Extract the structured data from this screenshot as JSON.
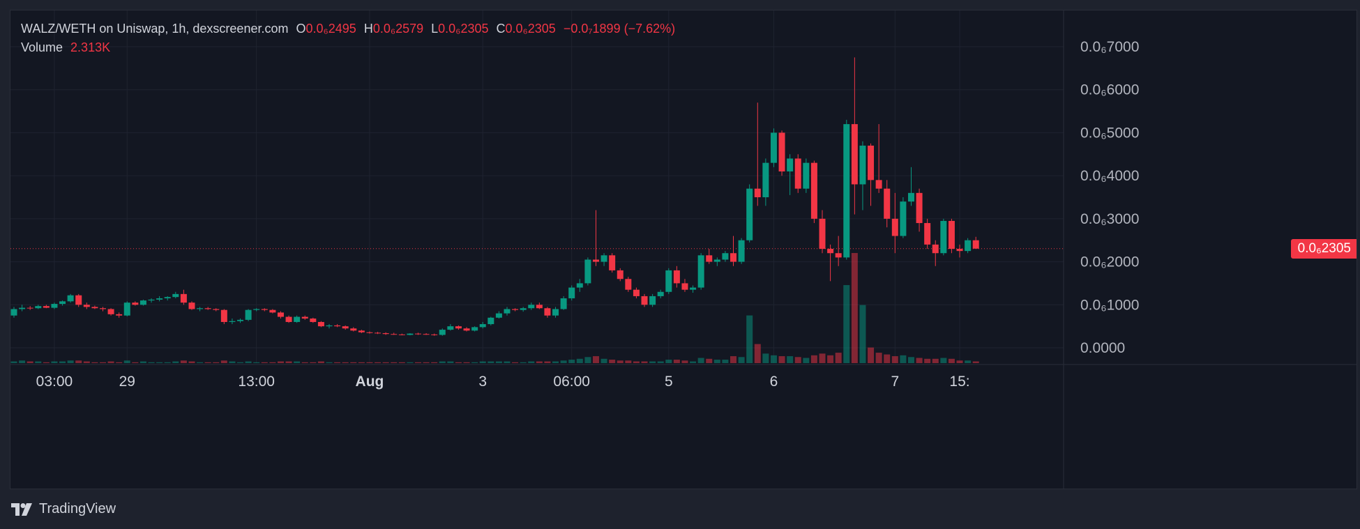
{
  "header": {
    "symbol_line": "WALZ/WETH on Uniswap, 1h, dexscreener.com",
    "o_label": "O",
    "o_value": "0.0₆2495",
    "h_label": "H",
    "h_value": "0.0₆2579",
    "l_label": "L",
    "l_value": "0.0₆2305",
    "c_label": "C",
    "c_value": "0.0₆2305",
    "change": "−0.0₇1899 (−7.62%)",
    "volume_label": "Volume",
    "volume_value": "2.313K"
  },
  "brand": "TradingView",
  "colors": {
    "up": "#089981",
    "down": "#f23645",
    "background": "#131722",
    "grid": "#1f2330",
    "text": "#d1d4dc"
  },
  "chart_data": {
    "type": "candlestick",
    "title": "WALZ/WETH on Uniswap, 1h, dexscreener.com",
    "y_unit": "×1e-7 WETH",
    "ylim": [
      -0.4,
      7.5
    ],
    "y_ticks": [
      0,
      1,
      2,
      3,
      4,
      5,
      6,
      7
    ],
    "y_tick_labels": [
      "0.0000",
      "0.0₆1000",
      "0.0₆2000",
      "0.0₆3000",
      "0.0₆4000",
      "0.0₆5000",
      "0.0₆6000",
      "0.0₆7000"
    ],
    "x_ticks": [
      {
        "index": 5,
        "label": "03:00",
        "bold": false
      },
      {
        "index": 14,
        "label": "29",
        "bold": false
      },
      {
        "index": 30,
        "label": "13:00",
        "bold": false
      },
      {
        "index": 44,
        "label": "Aug",
        "bold": true
      },
      {
        "index": 58,
        "label": "3",
        "bold": false
      },
      {
        "index": 69,
        "label": "06:00",
        "bold": false
      },
      {
        "index": 81,
        "label": "5",
        "bold": false
      },
      {
        "index": 94,
        "label": "6",
        "bold": false
      },
      {
        "index": 109,
        "label": "7",
        "bold": false
      },
      {
        "index": 117,
        "label": "15:",
        "bold": false
      }
    ],
    "last_price": 2.305,
    "last_price_label": "0.0₆2305",
    "candles": [
      [
        0.75,
        0.95,
        0.7,
        0.9,
        2
      ],
      [
        0.9,
        1.0,
        0.85,
        0.93,
        3
      ],
      [
        0.93,
        0.97,
        0.88,
        0.92,
        2
      ],
      [
        0.92,
        1.0,
        0.9,
        0.97,
        2
      ],
      [
        0.97,
        1.0,
        0.92,
        0.93,
        1
      ],
      [
        0.93,
        1.05,
        0.9,
        1.02,
        2
      ],
      [
        1.02,
        1.1,
        0.98,
        1.08,
        2
      ],
      [
        1.08,
        1.25,
        1.05,
        1.22,
        3
      ],
      [
        1.22,
        1.25,
        0.95,
        1.0,
        3
      ],
      [
        1.0,
        1.05,
        0.9,
        0.95,
        2
      ],
      [
        0.95,
        0.98,
        0.9,
        0.92,
        1
      ],
      [
        0.92,
        0.95,
        0.85,
        0.9,
        1
      ],
      [
        0.9,
        0.92,
        0.75,
        0.78,
        2
      ],
      [
        0.78,
        0.82,
        0.7,
        0.75,
        1
      ],
      [
        0.75,
        1.08,
        0.73,
        1.05,
        3
      ],
      [
        1.05,
        1.08,
        0.98,
        1.0,
        1
      ],
      [
        1.0,
        1.12,
        0.98,
        1.1,
        2
      ],
      [
        1.1,
        1.15,
        1.05,
        1.12,
        1
      ],
      [
        1.12,
        1.2,
        1.08,
        1.15,
        1
      ],
      [
        1.15,
        1.2,
        1.1,
        1.18,
        1
      ],
      [
        1.18,
        1.3,
        1.15,
        1.25,
        2
      ],
      [
        1.25,
        1.35,
        1.0,
        1.05,
        3
      ],
      [
        1.05,
        1.08,
        0.88,
        0.9,
        2
      ],
      [
        0.9,
        0.95,
        0.85,
        0.92,
        1
      ],
      [
        0.92,
        0.95,
        0.88,
        0.9,
        1
      ],
      [
        0.9,
        0.92,
        0.85,
        0.88,
        1
      ],
      [
        0.88,
        0.9,
        0.55,
        0.6,
        3
      ],
      [
        0.6,
        0.68,
        0.55,
        0.62,
        2
      ],
      [
        0.62,
        0.68,
        0.58,
        0.65,
        1
      ],
      [
        0.65,
        0.9,
        0.62,
        0.88,
        2
      ],
      [
        0.88,
        0.92,
        0.85,
        0.9,
        1
      ],
      [
        0.9,
        0.92,
        0.85,
        0.88,
        1
      ],
      [
        0.88,
        0.9,
        0.8,
        0.82,
        1
      ],
      [
        0.82,
        0.85,
        0.68,
        0.72,
        2
      ],
      [
        0.72,
        0.75,
        0.58,
        0.6,
        2
      ],
      [
        0.6,
        0.75,
        0.58,
        0.72,
        2
      ],
      [
        0.72,
        0.75,
        0.65,
        0.68,
        1
      ],
      [
        0.68,
        0.7,
        0.58,
        0.6,
        1
      ],
      [
        0.6,
        0.62,
        0.48,
        0.5,
        2
      ],
      [
        0.5,
        0.55,
        0.45,
        0.52,
        1
      ],
      [
        0.52,
        0.55,
        0.48,
        0.5,
        1
      ],
      [
        0.5,
        0.52,
        0.42,
        0.45,
        1
      ],
      [
        0.45,
        0.48,
        0.38,
        0.4,
        1
      ],
      [
        0.4,
        0.42,
        0.34,
        0.36,
        1
      ],
      [
        0.36,
        0.38,
        0.33,
        0.35,
        1
      ],
      [
        0.35,
        0.37,
        0.32,
        0.34,
        1
      ],
      [
        0.34,
        0.36,
        0.3,
        0.32,
        1
      ],
      [
        0.32,
        0.35,
        0.3,
        0.31,
        1
      ],
      [
        0.31,
        0.33,
        0.29,
        0.3,
        1
      ],
      [
        0.3,
        0.34,
        0.29,
        0.33,
        1
      ],
      [
        0.33,
        0.35,
        0.3,
        0.32,
        1
      ],
      [
        0.32,
        0.34,
        0.3,
        0.31,
        1
      ],
      [
        0.31,
        0.33,
        0.28,
        0.3,
        1
      ],
      [
        0.3,
        0.45,
        0.28,
        0.42,
        2
      ],
      [
        0.42,
        0.55,
        0.4,
        0.5,
        2
      ],
      [
        0.5,
        0.52,
        0.42,
        0.45,
        1
      ],
      [
        0.45,
        0.48,
        0.38,
        0.4,
        1
      ],
      [
        0.4,
        0.5,
        0.38,
        0.48,
        1
      ],
      [
        0.48,
        0.6,
        0.45,
        0.55,
        2
      ],
      [
        0.55,
        0.72,
        0.52,
        0.7,
        2
      ],
      [
        0.7,
        0.85,
        0.68,
        0.8,
        2
      ],
      [
        0.8,
        0.95,
        0.75,
        0.9,
        2
      ],
      [
        0.9,
        0.92,
        0.85,
        0.88,
        1
      ],
      [
        0.88,
        0.95,
        0.84,
        0.92,
        1
      ],
      [
        0.92,
        1.05,
        0.88,
        1.0,
        2
      ],
      [
        1.0,
        1.05,
        0.9,
        0.92,
        2
      ],
      [
        0.92,
        0.95,
        0.7,
        0.75,
        2
      ],
      [
        0.75,
        0.95,
        0.7,
        0.9,
        2
      ],
      [
        0.9,
        1.2,
        0.88,
        1.15,
        3
      ],
      [
        1.15,
        1.45,
        1.1,
        1.4,
        4
      ],
      [
        1.4,
        1.6,
        1.3,
        1.5,
        5
      ],
      [
        1.5,
        2.1,
        1.45,
        2.05,
        7
      ],
      [
        2.05,
        3.2,
        1.9,
        2.0,
        8
      ],
      [
        2.0,
        2.2,
        1.9,
        2.15,
        5
      ],
      [
        2.15,
        2.2,
        1.75,
        1.8,
        4
      ],
      [
        1.8,
        1.85,
        1.55,
        1.6,
        3
      ],
      [
        1.6,
        1.65,
        1.3,
        1.35,
        3
      ],
      [
        1.35,
        1.4,
        1.15,
        1.2,
        2
      ],
      [
        1.2,
        1.25,
        0.95,
        1.0,
        2
      ],
      [
        1.0,
        1.25,
        0.95,
        1.2,
        2
      ],
      [
        1.2,
        1.35,
        1.15,
        1.3,
        2
      ],
      [
        1.3,
        1.85,
        1.25,
        1.8,
        4
      ],
      [
        1.8,
        1.9,
        1.4,
        1.5,
        4
      ],
      [
        1.5,
        1.6,
        1.3,
        1.35,
        3
      ],
      [
        1.35,
        1.45,
        1.28,
        1.4,
        2
      ],
      [
        1.4,
        2.2,
        1.35,
        2.15,
        6
      ],
      [
        2.15,
        2.3,
        1.95,
        2.0,
        5
      ],
      [
        2.0,
        2.1,
        1.9,
        2.05,
        4
      ],
      [
        2.05,
        2.25,
        2.0,
        2.2,
        4
      ],
      [
        2.2,
        2.6,
        1.9,
        2.0,
        8
      ],
      [
        2.0,
        2.55,
        1.95,
        2.5,
        7
      ],
      [
        2.5,
        3.8,
        2.45,
        3.7,
        55
      ],
      [
        3.7,
        5.7,
        3.3,
        3.5,
        22
      ],
      [
        3.5,
        4.4,
        3.3,
        4.3,
        11
      ],
      [
        4.3,
        5.1,
        4.2,
        5.0,
        9
      ],
      [
        5.0,
        5.05,
        4.0,
        4.1,
        8
      ],
      [
        4.1,
        4.5,
        3.55,
        4.4,
        8
      ],
      [
        4.4,
        4.5,
        3.6,
        3.7,
        7
      ],
      [
        3.7,
        4.4,
        3.6,
        4.3,
        6
      ],
      [
        4.3,
        4.35,
        2.9,
        3.0,
        9
      ],
      [
        3.0,
        3.2,
        2.2,
        2.3,
        11
      ],
      [
        2.3,
        2.4,
        1.55,
        2.2,
        9
      ],
      [
        2.2,
        2.6,
        1.9,
        2.1,
        12
      ],
      [
        2.1,
        5.3,
        2.05,
        5.2,
        90
      ],
      [
        5.2,
        6.75,
        3.1,
        3.8,
        127
      ],
      [
        3.8,
        4.8,
        3.2,
        4.7,
        67
      ],
      [
        4.7,
        4.75,
        3.3,
        3.9,
        18
      ],
      [
        3.9,
        5.2,
        3.6,
        3.7,
        12
      ],
      [
        3.7,
        3.9,
        2.8,
        3.0,
        10
      ],
      [
        3.0,
        3.6,
        2.2,
        2.6,
        8
      ],
      [
        2.6,
        3.5,
        2.55,
        3.4,
        9
      ],
      [
        3.4,
        4.2,
        3.3,
        3.6,
        7
      ],
      [
        3.6,
        3.7,
        2.7,
        2.9,
        6
      ],
      [
        2.9,
        3.0,
        2.3,
        2.4,
        5
      ],
      [
        2.4,
        2.5,
        1.9,
        2.2,
        5
      ],
      [
        2.2,
        3.0,
        2.15,
        2.95,
        6
      ],
      [
        2.95,
        3.0,
        2.2,
        2.3,
        5
      ],
      [
        2.3,
        2.4,
        2.1,
        2.25,
        3
      ],
      [
        2.25,
        2.55,
        2.2,
        2.5,
        3
      ],
      [
        2.5,
        2.58,
        2.3,
        2.305,
        2
      ]
    ]
  }
}
